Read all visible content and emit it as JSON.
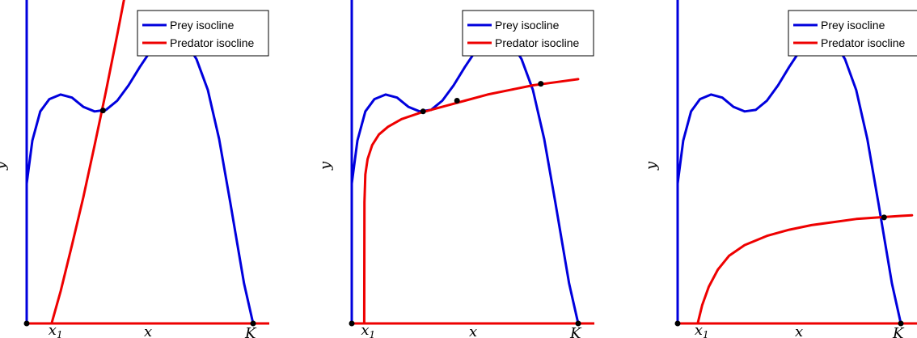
{
  "chart_data": [
    {
      "type": "line",
      "xlabel": "x",
      "ylabel": "y",
      "xlim": [
        0,
        10.5
      ],
      "ylim": [
        0,
        10
      ],
      "tick_labels": [
        "x1",
        "K"
      ],
      "x1_label": {
        "base": "x",
        "sub": "1"
      },
      "k_label": "K",
      "legend_position": "top-right",
      "series": [
        {
          "name": "Prey isocline",
          "color": "#0000dd",
          "x": [
            0,
            0.25,
            0.6,
            1,
            1.5,
            2,
            2.5,
            3,
            3.5,
            4,
            4.5,
            5,
            5.5,
            6,
            6.5,
            7,
            7.5,
            8,
            8.5,
            9,
            9.3,
            9.6,
            10
          ],
          "y": [
            4.55,
            5.95,
            6.9,
            7.3,
            7.45,
            7.35,
            7.05,
            6.9,
            6.95,
            7.25,
            7.75,
            8.35,
            8.9,
            9.25,
            9.4,
            9.2,
            8.6,
            7.6,
            6.0,
            3.9,
            2.6,
            1.3,
            0
          ]
        },
        {
          "name": "Predator isocline",
          "color": "#ee0000",
          "x": [
            1.1,
            1.5,
            2,
            2.5,
            3,
            3.5,
            4,
            4.5
          ],
          "y": [
            0,
            1.05,
            2.55,
            4.1,
            5.8,
            7.55,
            9.4,
            11.3
          ]
        }
      ],
      "y_axis_line": {
        "color": "#0000dd",
        "from_y": 0,
        "to_y": 10.6
      },
      "x_axis_line": {
        "color": "#ee0000"
      },
      "x1": 1.1,
      "K": 10,
      "intersections": [
        {
          "x": 3.37,
          "y": 6.93
        }
      ],
      "origin_point": true
    },
    {
      "type": "line",
      "xlabel": "x",
      "ylabel": "y",
      "xlim": [
        0,
        10.5
      ],
      "ylim": [
        0,
        10
      ],
      "tick_labels": [
        "x1",
        "K"
      ],
      "x1_label": {
        "base": "x",
        "sub": "1"
      },
      "k_label": "K",
      "legend_position": "top-right",
      "series": [
        {
          "name": "Prey isocline",
          "color": "#0000dd",
          "x": [
            0,
            0.25,
            0.6,
            1,
            1.5,
            2,
            2.5,
            3,
            3.5,
            4,
            4.5,
            5,
            5.5,
            6,
            6.5,
            7,
            7.5,
            8,
            8.5,
            9,
            9.3,
            9.6,
            10
          ],
          "y": [
            4.55,
            5.95,
            6.9,
            7.3,
            7.45,
            7.35,
            7.05,
            6.9,
            6.95,
            7.25,
            7.75,
            8.35,
            8.9,
            9.25,
            9.4,
            9.2,
            8.6,
            7.6,
            6.0,
            3.9,
            2.6,
            1.3,
            0
          ]
        },
        {
          "name": "Predator isocline",
          "color": "#ee0000",
          "x": [
            0.55,
            0.56,
            0.6,
            0.7,
            0.9,
            1.2,
            1.6,
            2.2,
            3,
            4,
            5,
            6,
            7,
            8,
            9,
            10
          ],
          "y": [
            0,
            3.95,
            4.85,
            5.35,
            5.8,
            6.15,
            6.4,
            6.65,
            6.85,
            7.05,
            7.25,
            7.45,
            7.6,
            7.75,
            7.85,
            7.95
          ]
        }
      ],
      "y_axis_line": {
        "color": "#0000dd",
        "from_y": 0,
        "to_y": 10.6
      },
      "x_axis_line": {
        "color": "#ee0000"
      },
      "x1": 0.55,
      "K": 10,
      "intersections": [
        {
          "x": 3.15,
          "y": 6.9
        },
        {
          "x": 4.65,
          "y": 7.25
        },
        {
          "x": 8.35,
          "y": 7.8
        }
      ],
      "origin_point": true
    },
    {
      "type": "line",
      "xlabel": "x",
      "ylabel": "y",
      "xlim": [
        0,
        10.5
      ],
      "ylim": [
        0,
        10
      ],
      "tick_labels": [
        "x1",
        "K"
      ],
      "x1_label": {
        "base": "x",
        "sub": "1"
      },
      "k_label": "K",
      "legend_position": "top-right",
      "series": [
        {
          "name": "Prey isocline",
          "color": "#0000dd",
          "x": [
            0,
            0.25,
            0.6,
            1,
            1.5,
            2,
            2.5,
            3,
            3.5,
            4,
            4.5,
            5,
            5.5,
            6,
            6.5,
            7,
            7.5,
            8,
            8.5,
            9,
            9.3,
            9.6,
            10
          ],
          "y": [
            4.55,
            5.95,
            6.9,
            7.3,
            7.45,
            7.35,
            7.05,
            6.9,
            6.95,
            7.25,
            7.75,
            8.35,
            8.9,
            9.25,
            9.4,
            9.2,
            8.6,
            7.6,
            6.0,
            3.9,
            2.6,
            1.3,
            0
          ]
        },
        {
          "name": "Predator isocline",
          "color": "#ee0000",
          "x": [
            0.9,
            1.1,
            1.4,
            1.8,
            2.3,
            3,
            4,
            5,
            6,
            7,
            8,
            9,
            10,
            10.5
          ],
          "y": [
            0,
            0.6,
            1.2,
            1.75,
            2.2,
            2.55,
            2.85,
            3.05,
            3.2,
            3.3,
            3.4,
            3.45,
            3.5,
            3.52
          ]
        }
      ],
      "y_axis_line": {
        "color": "#0000dd",
        "from_y": 0,
        "to_y": 10.6
      },
      "x_axis_line": {
        "color": "#ee0000"
      },
      "x1": 0.9,
      "K": 10,
      "intersections": [
        {
          "x": 9.25,
          "y": 3.45
        }
      ],
      "origin_point": true
    }
  ]
}
